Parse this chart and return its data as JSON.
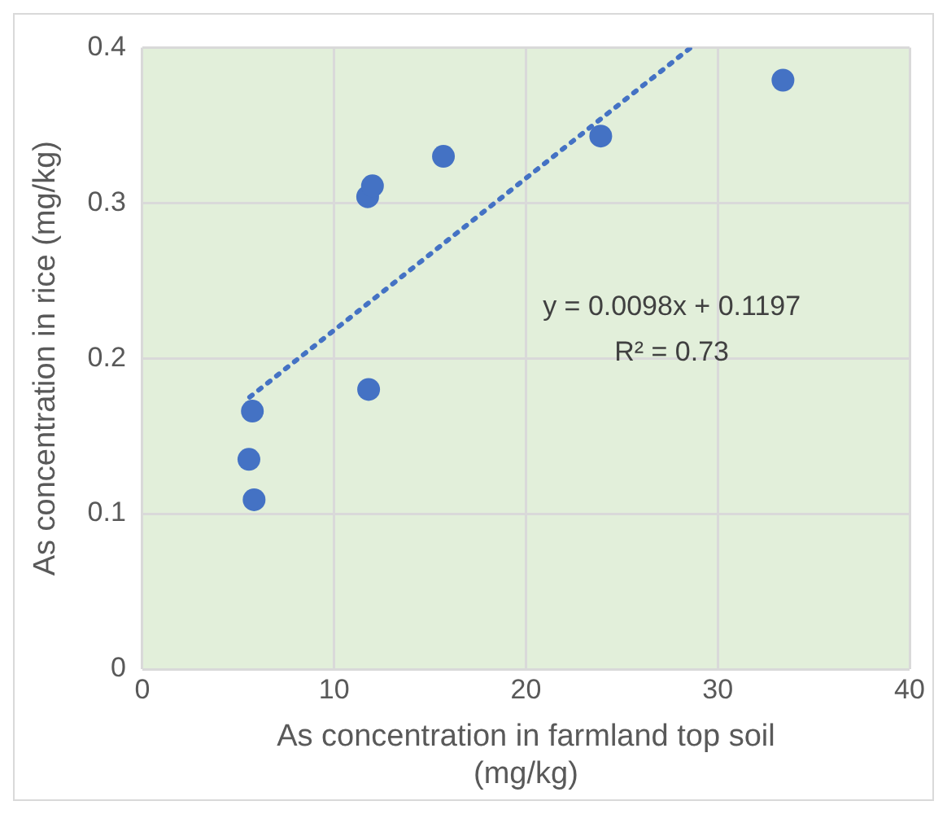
{
  "chart_data": {
    "type": "scatter",
    "xlabel": "As concentration in farmland top soil (mg/kg)",
    "ylabel": "As concentration in rice (mg/kg)",
    "xlim": [
      0,
      40
    ],
    "xticks": [
      0,
      10,
      20,
      30,
      40
    ],
    "ylim": [
      0,
      0.4
    ],
    "yticks": [
      0,
      0.1,
      0.2,
      0.3,
      0.4
    ],
    "grid": true,
    "legend": false,
    "annotations": [
      "y = 0.0098x + 0.1197",
      "R² = 0.73"
    ],
    "series": [
      {
        "type": "scatter",
        "color": "#4472c4",
        "marker": "circle",
        "x": [
          5.74,
          5.56,
          5.83,
          11.75,
          12.0,
          11.8,
          15.7,
          23.9,
          33.4
        ],
        "values": [
          0.166,
          0.135,
          0.109,
          0.304,
          0.311,
          0.18,
          0.33,
          0.343,
          0.379
        ]
      },
      {
        "type": "line",
        "color": "#4472c4",
        "marker": "none",
        "line_style": "dotted",
        "x": [
          5.6,
          28.6
        ],
        "values": [
          0.175,
          0.4
        ]
      }
    ]
  }
}
